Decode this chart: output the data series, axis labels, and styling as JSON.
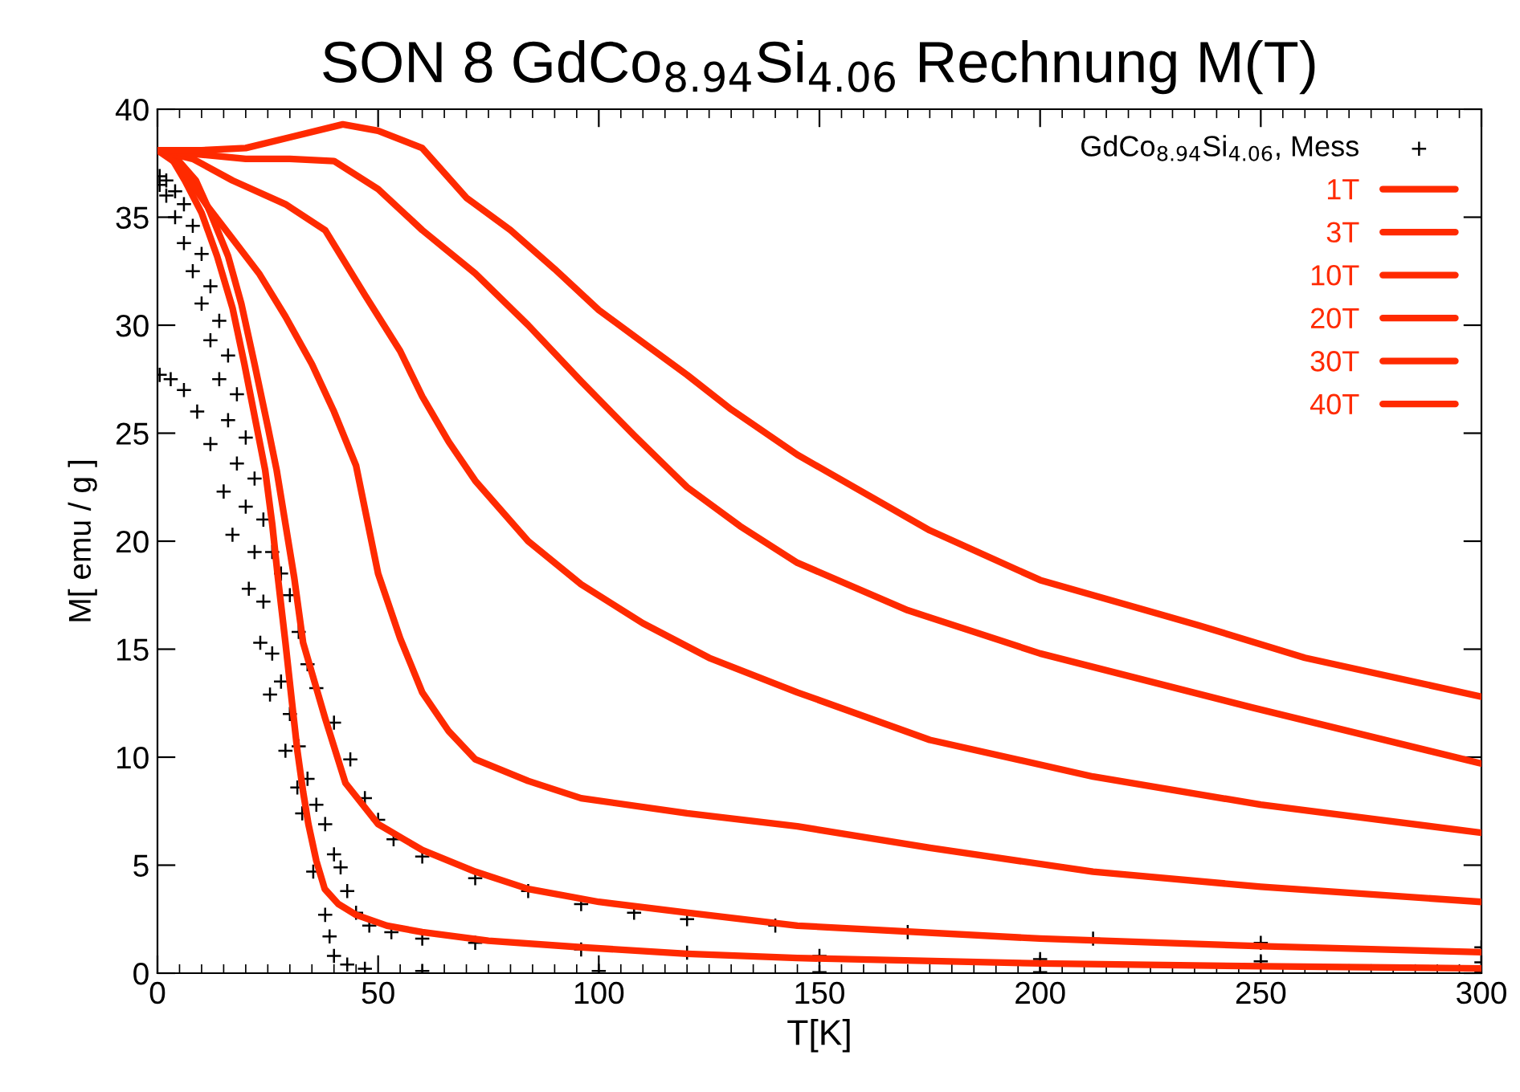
{
  "chart_data": {
    "type": "line",
    "title": "SON 8 GdCo$_{8.94}$Si$_{4.06}$ Rechnung M(T)",
    "xlabel": "T[K]",
    "ylabel": "M[ emu / g ]",
    "xlim": [
      0,
      300
    ],
    "xticks": [
      0,
      50,
      100,
      150,
      200,
      250,
      300
    ],
    "ylim": [
      0,
      40
    ],
    "yticks": [
      0,
      5,
      10,
      15,
      20,
      25,
      30,
      35,
      40
    ],
    "grid": false,
    "legend": "top right",
    "line_style": "solid",
    "series": [
      {
        "name": "GdCo$_{8.94}$Si$_{4.06}$, Mess",
        "type": "scatter",
        "marker": "cross",
        "color": "#000000",
        "x": [
          0.5,
          2,
          4,
          6,
          8,
          10,
          12,
          14,
          16,
          18,
          20,
          22,
          24,
          26,
          28,
          30,
          32,
          34,
          36,
          40,
          43.7,
          47,
          50,
          53.5,
          60,
          72,
          84,
          96,
          108,
          120,
          140,
          170,
          212,
          250,
          300,
          0.5,
          2,
          4,
          6,
          8,
          10,
          12,
          14,
          16,
          18,
          20,
          22,
          24,
          26,
          28,
          30,
          32,
          34,
          36,
          38,
          40,
          41.5,
          43,
          45,
          48,
          53,
          60,
          72,
          96,
          120,
          150,
          200,
          250,
          300,
          0.5,
          3,
          6,
          9,
          12,
          15,
          17,
          20.7,
          23.3,
          25.5,
          29,
          31.7,
          32.8,
          35.3,
          38,
          39,
          40,
          43,
          47,
          60,
          100,
          150,
          200,
          300
        ],
        "values": [
          36.9,
          36.7,
          36.2,
          35.6,
          34.6,
          33.3,
          31.8,
          30.2,
          28.6,
          26.8,
          24.8,
          22.9,
          21.0,
          19.5,
          18.5,
          17.5,
          15.8,
          14.3,
          13.2,
          11.6,
          9.9,
          8.1,
          7.1,
          6.2,
          5.4,
          4.4,
          3.8,
          3.2,
          2.8,
          2.5,
          2.2,
          1.9,
          1.6,
          1.4,
          1.2,
          36.5,
          36.0,
          35.0,
          33.8,
          32.5,
          31.0,
          29.3,
          27.5,
          25.6,
          23.6,
          21.6,
          19.5,
          17.2,
          14.8,
          13.5,
          12.0,
          10.5,
          9.0,
          7.8,
          6.9,
          5.5,
          4.9,
          3.8,
          2.8,
          2.2,
          1.9,
          1.6,
          1.4,
          1.1,
          0.95,
          0.8,
          0.65,
          0.55,
          0.5,
          27.7,
          27.5,
          27.0,
          26.0,
          24.5,
          22.3,
          20.3,
          17.8,
          15.3,
          12.9,
          10.3,
          8.6,
          7.4,
          4.7,
          2.7,
          1.7,
          0.8,
          0.4,
          0.2,
          0.1,
          0.1,
          0.05,
          0.05,
          0.05
        ]
      },
      {
        "name": "1T",
        "color": "#ff2a00",
        "x": [
          0,
          3,
          6.2,
          10,
          13.5,
          17,
          19.7,
          22,
          24.4,
          26,
          27.3,
          29,
          30.5,
          31.7,
          33,
          34.2,
          36,
          37.9,
          41,
          45,
          52,
          60,
          75,
          96,
          120,
          145,
          200,
          250,
          300
        ],
        "values": [
          38.1,
          37.8,
          36.7,
          35.2,
          33.2,
          30.8,
          28.2,
          25.8,
          23.3,
          20.8,
          18.3,
          15.3,
          12.5,
          10.3,
          8.4,
          6.9,
          5.2,
          3.9,
          3.2,
          2.7,
          2.2,
          1.9,
          1.5,
          1.2,
          0.9,
          0.7,
          0.45,
          0.32,
          0.22
        ]
      },
      {
        "name": "3T",
        "color": "#ff2a00",
        "x": [
          0,
          4,
          8.7,
          12,
          16,
          19,
          22,
          25,
          27,
          29,
          31,
          33,
          38,
          42.6,
          50,
          60,
          72,
          84,
          100,
          120,
          145,
          200,
          250,
          300
        ],
        "values": [
          38.1,
          37.8,
          36.7,
          35.2,
          33.2,
          31.0,
          28.2,
          25.3,
          23.3,
          20.8,
          18.3,
          15.3,
          11.8,
          8.8,
          6.9,
          5.7,
          4.7,
          3.9,
          3.3,
          2.8,
          2.2,
          1.6,
          1.25,
          0.97
        ]
      },
      {
        "name": "10T",
        "color": "#ff2a00",
        "x": [
          0,
          5,
          11,
          17,
          23,
          29,
          35,
          40,
          45,
          50,
          55,
          60,
          66,
          72,
          84,
          96,
          120,
          145,
          175,
          212,
          250,
          300
        ],
        "values": [
          38.1,
          37.4,
          35.6,
          34.0,
          32.4,
          30.4,
          28.2,
          26.0,
          23.5,
          18.5,
          15.5,
          13.0,
          11.2,
          9.9,
          8.9,
          8.1,
          7.4,
          6.8,
          5.8,
          4.7,
          4.0,
          3.3
        ]
      },
      {
        "name": "20T",
        "color": "#ff2a00",
        "x": [
          0,
          8,
          17,
          29,
          38,
          47,
          55,
          60,
          66,
          72,
          84,
          96,
          110,
          125,
          145,
          175,
          212,
          250,
          300
        ],
        "values": [
          38.1,
          37.7,
          36.7,
          35.6,
          34.4,
          31.4,
          28.8,
          26.7,
          24.6,
          22.8,
          20.0,
          18.0,
          16.2,
          14.6,
          13.0,
          10.8,
          9.1,
          7.8,
          6.5
        ]
      },
      {
        "name": "30T",
        "color": "#ff2a00",
        "x": [
          0,
          10,
          20,
          30,
          40,
          50,
          60,
          72,
          84,
          96,
          108,
          120,
          132,
          145,
          170,
          200,
          248,
          300
        ],
        "values": [
          38.1,
          37.9,
          37.7,
          37.7,
          37.6,
          36.3,
          34.4,
          32.4,
          30.0,
          27.4,
          24.9,
          22.5,
          20.7,
          19.0,
          16.8,
          14.8,
          12.3,
          9.7
        ]
      },
      {
        "name": "40T",
        "color": "#ff2a00",
        "x": [
          0,
          10,
          20,
          30,
          42,
          50,
          60,
          70,
          80,
          90,
          100,
          110,
          120,
          130,
          145,
          175,
          200,
          236,
          260,
          300
        ],
        "values": [
          38.1,
          38.1,
          38.2,
          38.7,
          39.3,
          39.0,
          38.2,
          35.9,
          34.4,
          32.6,
          30.7,
          29.2,
          27.7,
          26.1,
          24.0,
          20.5,
          18.2,
          16.1,
          14.6,
          12.8
        ]
      }
    ]
  }
}
